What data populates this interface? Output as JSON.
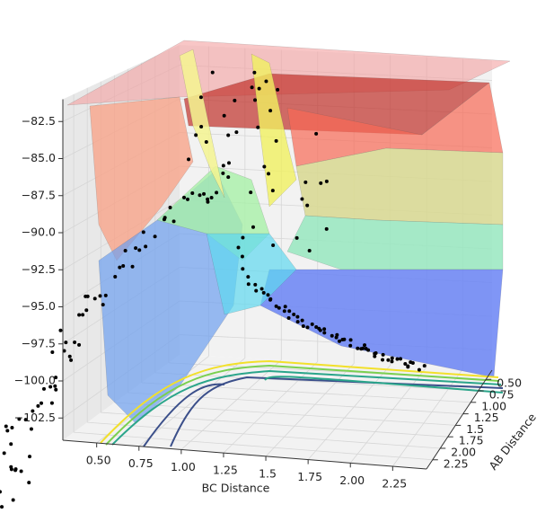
{
  "chart_data": {
    "type": "surface3d",
    "xlabel": "BC Distance",
    "ylabel": "AB Distance",
    "xlim": [
      0.3,
      2.45
    ],
    "ylim": [
      0.3,
      2.45
    ],
    "zlim": [
      -104,
      -81
    ],
    "xticks": [
      {
        "value": 0.5,
        "label": "0.50"
      },
      {
        "value": 0.75,
        "label": "0.75"
      },
      {
        "value": 1,
        "label": "1.00"
      },
      1.25,
      1.5,
      1.75,
      {
        "value": 2,
        "label": "2.00"
      },
      2.25
    ],
    "yticks": [
      {
        "value": 0.5,
        "label": "0.50"
      },
      {
        "value": 0.75,
        "label": "0.75"
      },
      {
        "value": 1,
        "label": "1.00"
      },
      1.25,
      1.5,
      1.75,
      {
        "value": 2,
        "label": "2.00"
      },
      2.25
    ],
    "zticks": [
      {
        "value": -82.5,
        "label": "−82.5"
      },
      {
        "value": -85,
        "label": "−85.0"
      },
      {
        "value": -87.5,
        "label": "−87.5"
      },
      {
        "value": -90,
        "label": "−90.0"
      },
      {
        "value": -92.5,
        "label": "−92.5"
      },
      {
        "value": -95,
        "label": "−95.0"
      },
      {
        "value": -97.5,
        "label": "−97.5"
      },
      {
        "value": -100,
        "label": "−100.0"
      },
      {
        "value": -102.5,
        "label": "−102.5"
      }
    ],
    "grid": true
  }
}
